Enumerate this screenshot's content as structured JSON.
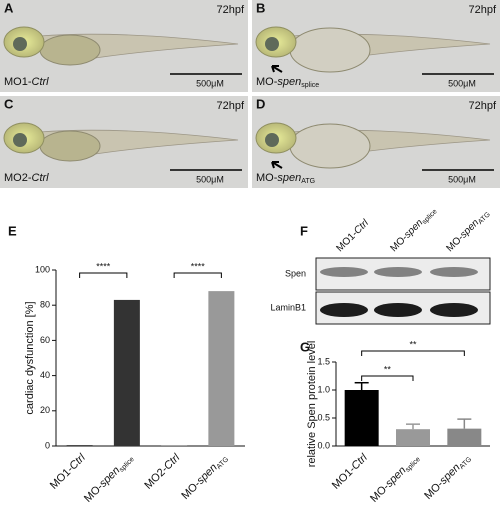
{
  "panels": [
    {
      "letter": "A",
      "stage": "72hpf",
      "label": {
        "prefix": "MO1-",
        "italic": "Ctrl"
      },
      "scale": "500μM"
    },
    {
      "letter": "B",
      "stage": "72hpf",
      "label": {
        "prefix": "MO-",
        "italic": "spen",
        "sub": "splice"
      },
      "scale": "500μM"
    },
    {
      "letter": "C",
      "stage": "72hpf",
      "label": {
        "prefix": "MO2-",
        "italic": "Ctrl"
      },
      "scale": "500μM"
    },
    {
      "letter": "D",
      "stage": "72hpf",
      "label": {
        "prefix": "MO-",
        "italic": "spen",
        "sub": "ATG"
      },
      "scale": "500μM"
    }
  ],
  "blot": {
    "letter": "F",
    "columns": [
      {
        "prefix": "MO1-",
        "italic": "Ctrl"
      },
      {
        "prefix": "MO-",
        "italic": "spen",
        "sub": "splice"
      },
      {
        "prefix": "MO-",
        "italic": "spen",
        "sub": "ATG"
      }
    ],
    "rows": [
      "Spen",
      "LaminB1"
    ]
  },
  "chart_data": [
    {
      "type": "bar",
      "letter": "E",
      "y_label": "cardiac dysfunction [%]",
      "categories": [
        {
          "prefix": "MO1-",
          "italic": "Ctrl"
        },
        {
          "prefix": "MO-",
          "italic": "spen",
          "sub": "splice"
        },
        {
          "prefix": "MO2-",
          "italic": "Ctrl"
        },
        {
          "prefix": "MO-",
          "italic": "spen",
          "sub": "ATG"
        }
      ],
      "values": [
        0.5,
        83,
        0.5,
        88
      ],
      "colors": [
        "#333333",
        "#333333",
        "#999999",
        "#999999"
      ],
      "ylim": [
        0,
        100
      ],
      "yticks": [
        0,
        20,
        40,
        60,
        80,
        100
      ],
      "annotations": [
        "****",
        "****"
      ]
    },
    {
      "type": "bar",
      "letter": "G",
      "y_label": "relative Spen protein level",
      "categories": [
        {
          "prefix": "MO1-",
          "italic": "Ctrl"
        },
        {
          "prefix": "MO-",
          "italic": "spen",
          "sub": "splice"
        },
        {
          "prefix": "MO-",
          "italic": "spen",
          "sub": "ATG"
        }
      ],
      "values": [
        1.0,
        0.3,
        0.31
      ],
      "errors": [
        0.13,
        0.09,
        0.17
      ],
      "colors": [
        "#000000",
        "#999999",
        "#888888"
      ],
      "ylim": [
        0,
        1.5
      ],
      "yticks": [
        {
          "value": 0,
          "label": "0.0"
        },
        0.5,
        {
          "value": 1,
          "label": "1.0"
        },
        1.5
      ],
      "annotations": [
        "**",
        "**"
      ]
    }
  ]
}
